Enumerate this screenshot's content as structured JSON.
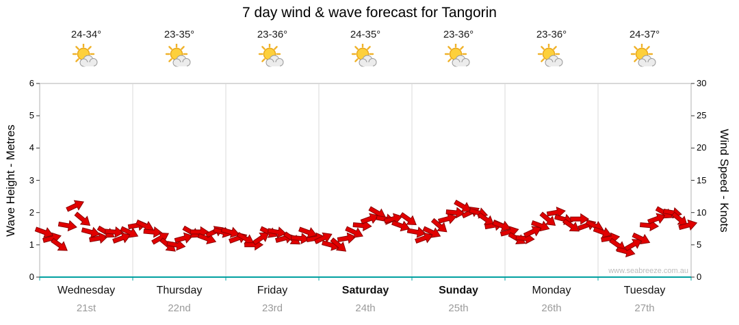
{
  "header": {
    "title": "7 day wind & wave forecast for Tangorin"
  },
  "watermark": "www.seabreeze.com.au",
  "chart_data": {
    "type": "wind-arrows",
    "title": "7 day wind & wave forecast for Tangorin",
    "y_left": {
      "label": "Wave Height - Metres",
      "min": 0,
      "max": 6,
      "ticks": [
        0,
        1,
        2,
        3,
        4,
        5,
        6
      ]
    },
    "y_right": {
      "label": "Wind Speed - Knots",
      "min": 0,
      "max": 30,
      "ticks": [
        0,
        5,
        10,
        15,
        20,
        25,
        30
      ]
    },
    "x_days": [
      {
        "name": "Wednesday",
        "date": "21st",
        "temp": "24-34°",
        "bold": false,
        "icon": "sun-behind-cloud"
      },
      {
        "name": "Thursday",
        "date": "22nd",
        "temp": "23-35°",
        "bold": false,
        "icon": "sun-behind-cloud"
      },
      {
        "name": "Friday",
        "date": "23rd",
        "temp": "23-36°",
        "bold": false,
        "icon": "sun-behind-cloud"
      },
      {
        "name": "Saturday",
        "date": "24th",
        "temp": "24-35°",
        "bold": true,
        "icon": "sun-behind-cloud"
      },
      {
        "name": "Sunday",
        "date": "25th",
        "temp": "23-36°",
        "bold": true,
        "icon": "sun-behind-cloud"
      },
      {
        "name": "Monday",
        "date": "26th",
        "temp": "23-36°",
        "bold": false,
        "icon": "sun-behind-cloud"
      },
      {
        "name": "Tuesday",
        "date": "27th",
        "temp": "24-37°",
        "bold": false,
        "icon": "sun-behind-cloud"
      }
    ],
    "series": [
      {
        "day": "Wednesday",
        "wind_knots": [
          7,
          6,
          5,
          8,
          11,
          9,
          7,
          6,
          7,
          7,
          6,
          7
        ],
        "arrow_dir_deg": [
          20,
          -15,
          35,
          10,
          -25,
          40,
          15,
          -10,
          30,
          5,
          -20,
          25
        ]
      },
      {
        "day": "Thursday",
        "wind_knots": [
          8,
          8,
          7,
          6,
          5,
          5,
          6,
          7,
          7,
          6,
          7,
          7
        ],
        "arrow_dir_deg": [
          -10,
          25,
          5,
          -30,
          40,
          10,
          -15,
          30,
          0,
          20,
          -25,
          15
        ]
      },
      {
        "day": "Friday",
        "wind_knots": [
          7,
          6,
          6,
          5,
          6,
          7,
          7,
          6,
          6,
          6,
          7,
          6
        ],
        "arrow_dir_deg": [
          15,
          -20,
          30,
          0,
          -35,
          25,
          10,
          -15,
          35,
          5,
          20,
          -10
        ]
      },
      {
        "day": "Saturday",
        "wind_knots": [
          6,
          5,
          5,
          6,
          7,
          8,
          9,
          10,
          9,
          9,
          8,
          9
        ],
        "arrow_dir_deg": [
          -25,
          15,
          40,
          -10,
          25,
          5,
          -20,
          30,
          10,
          -15,
          20,
          35
        ]
      },
      {
        "day": "Sunday",
        "wind_knots": [
          7,
          6,
          7,
          8,
          9,
          10,
          11,
          10,
          10,
          9,
          8,
          8
        ],
        "arrow_dir_deg": [
          10,
          -20,
          25,
          40,
          -15,
          5,
          30,
          -25,
          15,
          35,
          -10,
          20
        ]
      },
      {
        "day": "Monday",
        "wind_knots": [
          7,
          6,
          6,
          7,
          8,
          9,
          10,
          9,
          8,
          9,
          8,
          8
        ],
        "arrow_dir_deg": [
          -15,
          30,
          5,
          -25,
          20,
          40,
          -10,
          15,
          35,
          0,
          -20,
          25
        ]
      },
      {
        "day": "Tuesday",
        "wind_knots": [
          7,
          6,
          5,
          4,
          5,
          6,
          8,
          9,
          10,
          10,
          9,
          8
        ],
        "arrow_dir_deg": [
          20,
          -10,
          35,
          15,
          -30,
          25,
          5,
          -20,
          30,
          10,
          40,
          -15
        ]
      }
    ],
    "colors": {
      "arrow": "#e10000",
      "arrow_outline": "#8b0000",
      "axis_bottom": "#00a0a0",
      "grid": "#d8d8d8",
      "border": "#b0b0b0"
    }
  }
}
